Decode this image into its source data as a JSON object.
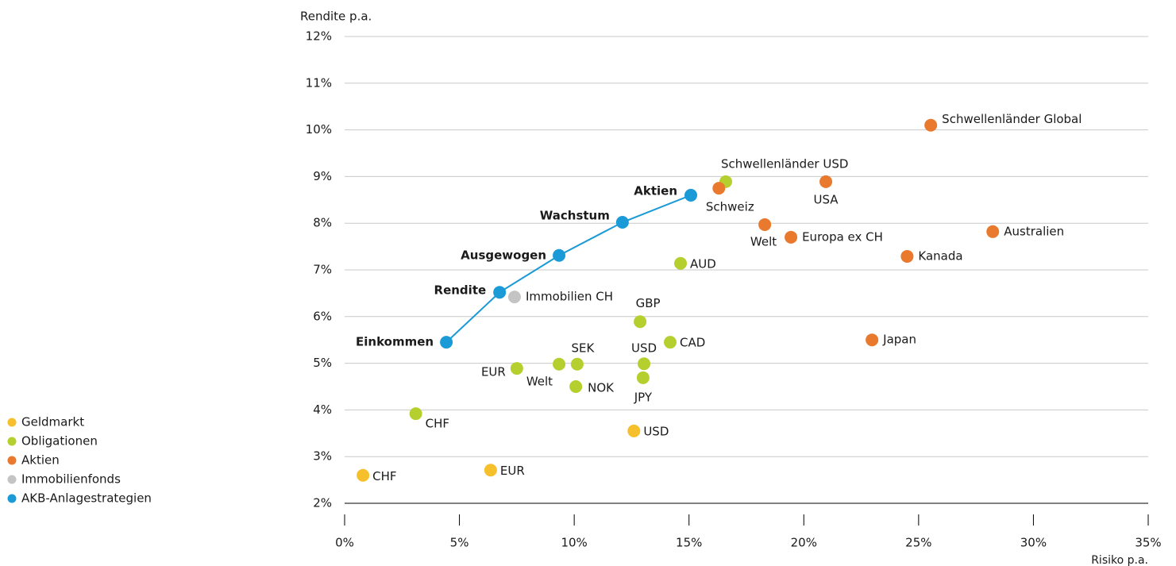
{
  "chart_data": {
    "type": "scatter",
    "xlabel": "Risiko p.a.",
    "ylabel": "Rendite p.a.",
    "xlim": [
      0,
      35
    ],
    "xticks": [
      {
        "value": 0,
        "label": "0%"
      },
      {
        "value": 5,
        "label": "5%"
      },
      {
        "value": 10,
        "label": "10%"
      },
      {
        "value": 15,
        "label": "15%"
      },
      {
        "value": 20,
        "label": "20%"
      },
      {
        "value": 25,
        "label": "25%"
      },
      {
        "value": 30,
        "label": "30%"
      },
      {
        "value": 35,
        "label": "35%"
      }
    ],
    "ylim": [
      2,
      12
    ],
    "yticks": [
      {
        "value": 2,
        "label": "2%"
      },
      {
        "value": 3,
        "label": "3%"
      },
      {
        "value": 4,
        "label": "4%"
      },
      {
        "value": 5,
        "label": "5%"
      },
      {
        "value": 6,
        "label": "6%"
      },
      {
        "value": 7,
        "label": "7%"
      },
      {
        "value": 8,
        "label": "8%"
      },
      {
        "value": 9,
        "label": "9%"
      },
      {
        "value": 10,
        "label": "10%"
      },
      {
        "value": 11,
        "label": "11%"
      },
      {
        "value": 12,
        "label": "12%"
      }
    ],
    "grid": true,
    "legend": "left",
    "series": [
      {
        "name": "Geldmarkt",
        "color": "#f5c02c",
        "labels": [
          "CHF",
          "EUR",
          "USD"
        ],
        "x": [
          0.8,
          6.36,
          12.6
        ],
        "values": [
          2.6,
          2.71,
          3.55
        ]
      },
      {
        "name": "Obligationen",
        "color": "#b5cf2f",
        "labels": [
          "CHF",
          "EUR",
          "Welt",
          "SEK",
          "NOK",
          "USD",
          "JPY",
          "GBP",
          "CAD",
          "AUD",
          "Schwellenländer USD"
        ],
        "x": [
          3.1,
          7.5,
          9.34,
          10.13,
          10.07,
          13.04,
          13.0,
          12.87,
          14.18,
          14.63,
          16.6
        ],
        "values": [
          3.92,
          4.89,
          4.98,
          4.98,
          4.5,
          4.99,
          4.69,
          5.89,
          5.45,
          7.14,
          8.89
        ]
      },
      {
        "name": "Aktien",
        "color": "#e9792c",
        "labels": [
          "Schweiz",
          "USA",
          "Welt",
          "Europa ex CH",
          "Australien",
          "Kanada",
          "Japan",
          "Schwellenländer Global"
        ],
        "x": [
          16.3,
          20.96,
          18.3,
          19.44,
          28.23,
          24.5,
          22.97,
          25.53
        ],
        "values": [
          8.75,
          8.89,
          7.97,
          7.7,
          7.82,
          7.29,
          5.5,
          10.1
        ]
      },
      {
        "name": "Immobilienfonds",
        "color": "#c4c4c4",
        "labels": [
          "Immobilien CH"
        ],
        "x": [
          7.4
        ],
        "values": [
          6.42
        ]
      },
      {
        "name": "AKB-Anlagestrategien",
        "color": "#1a9ad6",
        "line": true,
        "labels": [
          "Einkommen",
          "Rendite",
          "Ausgewogen",
          "Wachstum",
          "Aktien"
        ],
        "x": [
          4.43,
          6.75,
          9.34,
          12.1,
          15.08
        ],
        "values": [
          5.45,
          6.52,
          7.31,
          8.02,
          8.6
        ]
      }
    ]
  }
}
